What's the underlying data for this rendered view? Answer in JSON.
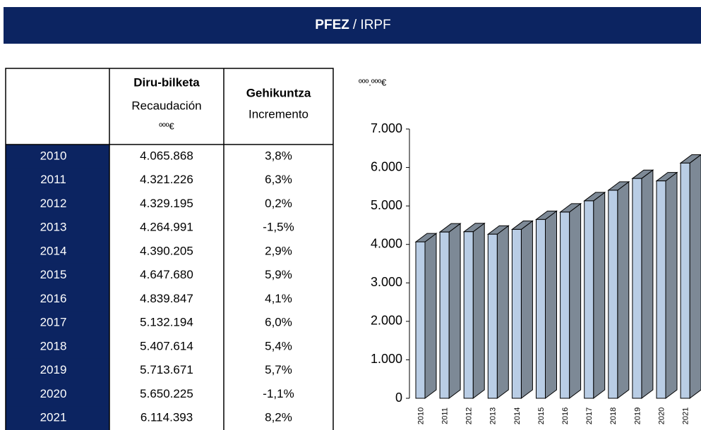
{
  "header": {
    "title_bold": "PFEZ",
    "title_rest": "/ IRPF"
  },
  "table": {
    "header": [
      {
        "lines": []
      },
      {
        "bold": "Diru-bilketa",
        "lines": [
          "Recaudación",
          "ººº€"
        ]
      },
      {
        "bold": "Gehikuntza",
        "lines": [
          "Incremento"
        ]
      }
    ],
    "rows": [
      [
        "2010",
        "4.065.868",
        "3,8%"
      ],
      [
        "2011",
        "4.321.226",
        "6,3%"
      ],
      [
        "2012",
        "4.329.195",
        "0,2%"
      ],
      [
        "2013",
        "4.264.991",
        "-1,5%"
      ],
      [
        "2014",
        "4.390.205",
        "2,9%"
      ],
      [
        "2015",
        "4.647.680",
        "5,9%"
      ],
      [
        "2016",
        "4.839.847",
        "4,1%"
      ],
      [
        "2017",
        "5.132.194",
        "6,0%"
      ],
      [
        "2018",
        "5.407.614",
        "5,4%"
      ],
      [
        "2019",
        "5.713.671",
        "5,7%"
      ],
      [
        "2020",
        "5.650.225",
        "-1,1%"
      ],
      [
        "2021",
        "6.114.393",
        "8,2%"
      ]
    ]
  },
  "chart_data": {
    "type": "bar",
    "y_label": "ººº.ººº€",
    "categories": [
      "2010",
      "2011",
      "2012",
      "2013",
      "2014",
      "2015",
      "2016",
      "2017",
      "2018",
      "2019",
      "2020",
      "2021"
    ],
    "values": [
      4065.868,
      4321.226,
      4329.195,
      4264.991,
      4390.205,
      4647.68,
      4839.847,
      5132.194,
      5407.614,
      5713.671,
      5650.225,
      6114.393
    ],
    "color": "#b9cde5",
    "side_color": "#7d8996",
    "ylim": [
      0,
      7000
    ],
    "yticks": [
      0,
      {
        "value": 1000,
        "label": "1.000"
      },
      {
        "value": 2000,
        "label": "2.000"
      },
      {
        "value": 3000,
        "label": "3.000"
      },
      {
        "value": 4000,
        "label": "4.000"
      },
      {
        "value": 5000,
        "label": "5.000"
      },
      {
        "value": 6000,
        "label": "6.000"
      },
      {
        "value": 7000,
        "label": "7.000"
      }
    ]
  }
}
